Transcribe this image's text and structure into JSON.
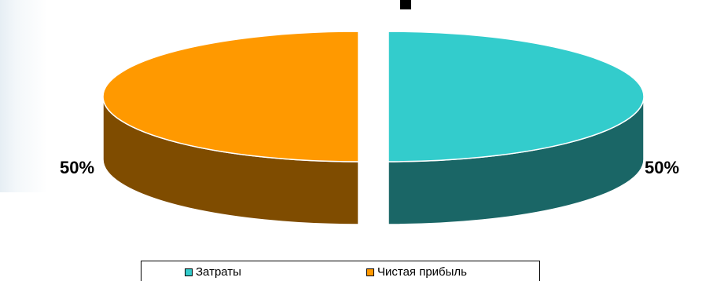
{
  "chart_data": {
    "type": "pie",
    "three_d": true,
    "exploded": true,
    "slices": [
      {
        "name": "Затраты",
        "value": 50,
        "label": "50%",
        "color": "#33cccc",
        "side_color": "#1a6666"
      },
      {
        "name": "Чистая прибыль",
        "value": 50,
        "label": "50%",
        "color": "#ff9900",
        "side_color": "#7f4c00"
      }
    ],
    "legend": {
      "placement": "bottom"
    }
  }
}
